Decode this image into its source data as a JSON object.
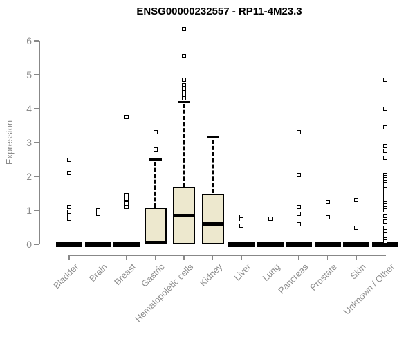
{
  "title": "ENSG00000232557 - RP11-4M23.3",
  "colors": {
    "box_fill": "#ede8ce",
    "box_border": "#000000",
    "axis": "#888888",
    "axis_text": "#8c8c8c",
    "title_text": "#000000",
    "background": "#ffffff"
  },
  "chart_data": {
    "type": "boxplot",
    "title": "ENSG00000232557 - RP11-4M23.3",
    "xlabel": "",
    "ylabel": "Expression",
    "ylim": [
      0,
      6.45
    ],
    "yticks": [
      0,
      1,
      2,
      3,
      4,
      5,
      6
    ],
    "grid": false,
    "legend": false,
    "categories": [
      "Bladder",
      "Brain",
      "Breast",
      "Gastric",
      "Hematopoietic cells",
      "Kidney",
      "Liver",
      "Lung",
      "Pancreas",
      "Prostate",
      "Skin",
      "Unknown / Other"
    ],
    "series": [
      {
        "category": "Bladder",
        "q1": 0,
        "median": 0,
        "q3": 0,
        "whisker_low": 0,
        "whisker_high": 0,
        "outliers": [
          2.5,
          2.1,
          1.1,
          0.95,
          0.85,
          0.75
        ]
      },
      {
        "category": "Brain",
        "q1": 0,
        "median": 0,
        "q3": 0,
        "whisker_low": 0,
        "whisker_high": 0,
        "outliers": [
          1.0,
          0.9
        ]
      },
      {
        "category": "Breast",
        "q1": 0,
        "median": 0,
        "q3": 0,
        "whisker_low": 0,
        "whisker_high": 0,
        "outliers": [
          3.75,
          1.45,
          1.35,
          1.2,
          1.1
        ]
      },
      {
        "category": "Gastric",
        "q1": 0,
        "median": 0.05,
        "q3": 1.08,
        "whisker_low": 0,
        "whisker_high": 2.5,
        "outliers": [
          3.3,
          2.8
        ]
      },
      {
        "category": "Hematopoietic cells",
        "q1": 0,
        "median": 0.85,
        "q3": 1.7,
        "whisker_low": 0,
        "whisker_high": 4.2,
        "outliers": [
          6.35,
          5.55,
          4.85,
          4.7,
          4.6,
          4.5,
          4.4,
          4.3
        ]
      },
      {
        "category": "Kidney",
        "q1": 0,
        "median": 0.6,
        "q3": 1.5,
        "whisker_low": 0,
        "whisker_high": 3.15,
        "outliers": []
      },
      {
        "category": "Liver",
        "q1": 0,
        "median": 0,
        "q3": 0,
        "whisker_low": 0,
        "whisker_high": 0,
        "outliers": [
          0.82,
          0.74,
          0.55
        ]
      },
      {
        "category": "Lung",
        "q1": 0,
        "median": 0,
        "q3": 0,
        "whisker_low": 0,
        "whisker_high": 0,
        "outliers": [
          0.75
        ]
      },
      {
        "category": "Pancreas",
        "q1": 0,
        "median": 0,
        "q3": 0,
        "whisker_low": 0,
        "whisker_high": 0,
        "outliers": [
          3.3,
          2.05,
          1.1,
          0.9,
          0.6
        ]
      },
      {
        "category": "Prostate",
        "q1": 0,
        "median": 0,
        "q3": 0,
        "whisker_low": 0,
        "whisker_high": 0,
        "outliers": [
          1.25,
          0.8
        ]
      },
      {
        "category": "Skin",
        "q1": 0,
        "median": 0,
        "q3": 0,
        "whisker_low": 0,
        "whisker_high": 0,
        "outliers": [
          1.3,
          0.5
        ]
      },
      {
        "category": "Unknown / Other",
        "q1": 0,
        "median": 0,
        "q3": 0,
        "whisker_low": 0,
        "whisker_high": 0,
        "outliers": [
          4.85,
          4.0,
          3.45,
          2.9,
          2.75,
          2.55,
          2.05,
          1.98,
          1.91,
          1.84,
          1.77,
          1.7,
          1.63,
          1.56,
          1.49,
          1.42,
          1.35,
          1.28,
          1.21,
          1.14,
          1.07,
          1.0,
          0.84,
          0.67,
          0.5,
          0.38,
          0.3,
          0.22,
          0.15,
          0.08
        ]
      }
    ]
  }
}
